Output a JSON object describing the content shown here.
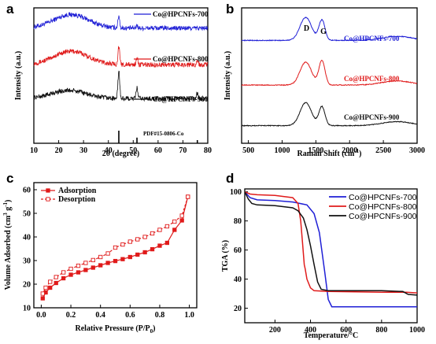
{
  "colors": {
    "blue": "#1f1fd6",
    "red": "#e01b1b",
    "black": "#111111"
  },
  "chart_data": [
    {
      "panel": "a",
      "type": "line",
      "xlabel": "2θ (degree)",
      "ylabel": "Intensity (a.u.)",
      "xlim": [
        10,
        80
      ],
      "x_ticks": [
        "10",
        "20",
        "30",
        "40",
        "50",
        "60",
        "70",
        "80"
      ],
      "series": [
        {
          "name": "Co@HPCNFs-700",
          "color": "blue",
          "baseline": 0.85,
          "hump": [
            25,
            0.1
          ],
          "peaks": [
            [
              44.2,
              0.09
            ],
            [
              51.5,
              0.02
            ]
          ]
        },
        {
          "name": "Co@HPCNFs-800",
          "color": "red",
          "baseline": 0.58,
          "hump": [
            25,
            0.1
          ],
          "peaks": [
            [
              44.2,
              0.13
            ],
            [
              51.5,
              0.05
            ],
            [
              75.8,
              0.03
            ]
          ]
        },
        {
          "name": "Co@HPCNFs-900",
          "color": "black",
          "baseline": 0.33,
          "hump": [
            24,
            0.06
          ],
          "peaks": [
            [
              44.2,
              0.2
            ],
            [
              51.5,
              0.08
            ],
            [
              75.8,
              0.04
            ]
          ]
        }
      ],
      "reference": {
        "name": "PDF#15-0806-Co",
        "lines": [
          [
            44.2,
            1.0
          ],
          [
            51.5,
            0.45
          ],
          [
            75.8,
            0.25
          ]
        ]
      }
    },
    {
      "panel": "b",
      "type": "line",
      "xlabel": "Raman Shift (cm",
      "xlabel_sup": "-1",
      "xlabel_end": ")",
      "ylabel": "Intensity (a.u.)",
      "xlim": [
        400,
        3000
      ],
      "x_ticks": [
        "500",
        "1000",
        "1500",
        "2000",
        "2500",
        "3000"
      ],
      "peak_labels": {
        "D": "D",
        "G": "G",
        "D_x": 1350,
        "G_x": 1590
      },
      "series": [
        {
          "name": "Co@HPCNFs-700",
          "color": "blue",
          "baseline": 0.76,
          "D": 0.17,
          "G": 0.15
        },
        {
          "name": "Co@HPCNFs-800",
          "color": "red",
          "baseline": 0.43,
          "D": 0.17,
          "G": 0.18
        },
        {
          "name": "Co@HPCNFs-900",
          "color": "black",
          "baseline": 0.13,
          "D": 0.17,
          "G": 0.14
        }
      ]
    },
    {
      "panel": "c",
      "type": "line",
      "xlabel": "Relative Pressure (P/P",
      "xlabel_sub": "0",
      "xlabel_end": ")",
      "ylabel": "Volume Adsorbed (cm",
      "ylabel_sup1": "3",
      "ylabel_mid": " g",
      "ylabel_sup2": "-1",
      "ylabel_end": ")",
      "xlim": [
        -0.05,
        1.05
      ],
      "ylim": [
        10,
        63
      ],
      "x_ticks": [
        "0.0",
        "0.2",
        "0.4",
        "0.6",
        "0.8",
        "1.0"
      ],
      "y_ticks": [
        "10",
        "20",
        "30",
        "40",
        "50",
        "60"
      ],
      "series": [
        {
          "name": "Adsorption",
          "color": "red",
          "marker": "filled",
          "x": [
            0.01,
            0.03,
            0.06,
            0.1,
            0.15,
            0.2,
            0.25,
            0.3,
            0.35,
            0.4,
            0.45,
            0.5,
            0.55,
            0.6,
            0.65,
            0.7,
            0.75,
            0.8,
            0.85,
            0.9,
            0.95,
            0.99
          ],
          "y": [
            14.0,
            16.5,
            18.5,
            20.5,
            22.5,
            24.0,
            25.0,
            26.0,
            27.0,
            28.0,
            29.0,
            29.8,
            30.6,
            31.5,
            32.5,
            33.5,
            34.8,
            36.3,
            37.5,
            43.0,
            47.0,
            57.0
          ]
        },
        {
          "name": "Desorption",
          "color": "red",
          "marker": "open",
          "x": [
            0.99,
            0.95,
            0.9,
            0.85,
            0.8,
            0.75,
            0.7,
            0.65,
            0.6,
            0.55,
            0.5,
            0.45,
            0.4,
            0.35,
            0.3,
            0.25,
            0.2,
            0.15,
            0.1,
            0.06,
            0.03,
            0.01
          ],
          "y": [
            57.0,
            49.0,
            46.5,
            44.5,
            43.0,
            41.5,
            40.0,
            39.0,
            38.0,
            36.8,
            35.5,
            33.0,
            31.5,
            30.2,
            29.0,
            27.8,
            26.5,
            25.0,
            23.0,
            21.0,
            18.5,
            16.0
          ]
        }
      ]
    },
    {
      "panel": "d",
      "type": "line",
      "xlabel": "Temperature/°C",
      "ylabel": "TGA (%)",
      "xlim": [
        30,
        1000
      ],
      "ylim": [
        10,
        102
      ],
      "x_ticks": [
        "200",
        "400",
        "600",
        "800",
        "1000"
      ],
      "y_ticks": [
        "20",
        "40",
        "60",
        "80",
        "100"
      ],
      "series": [
        {
          "name": "Co@HPCNFs-700",
          "color": "blue",
          "x": [
            30,
            60,
            100,
            200,
            300,
            380,
            420,
            450,
            480,
            500,
            520,
            600,
            800,
            1000
          ],
          "y": [
            100,
            96,
            94.5,
            94,
            93,
            91,
            85,
            72,
            45,
            26,
            21,
            21,
            21,
            21
          ]
        },
        {
          "name": "Co@HPCNFs-800",
          "color": "red",
          "x": [
            30,
            60,
            100,
            200,
            300,
            330,
            345,
            355,
            365,
            370,
            380,
            400,
            420,
            500,
            800,
            940,
            1000
          ],
          "y": [
            100,
            98.5,
            98,
            97.5,
            96,
            92,
            80,
            65,
            50,
            47,
            40,
            34,
            32,
            31.5,
            31,
            31,
            30.5
          ]
        },
        {
          "name": "Co@HPCNFs-900",
          "color": "black",
          "x": [
            30,
            50,
            70,
            100,
            200,
            300,
            330,
            360,
            380,
            400,
            420,
            440,
            460,
            500,
            800,
            920,
            950,
            1000
          ],
          "y": [
            100,
            95,
            92,
            91,
            90.5,
            89,
            87,
            82,
            74,
            63,
            50,
            38,
            33,
            32,
            32,
            31.5,
            29.5,
            29
          ]
        }
      ]
    }
  ],
  "panel_labels": {
    "a": "a",
    "b": "b",
    "c": "c",
    "d": "d"
  }
}
